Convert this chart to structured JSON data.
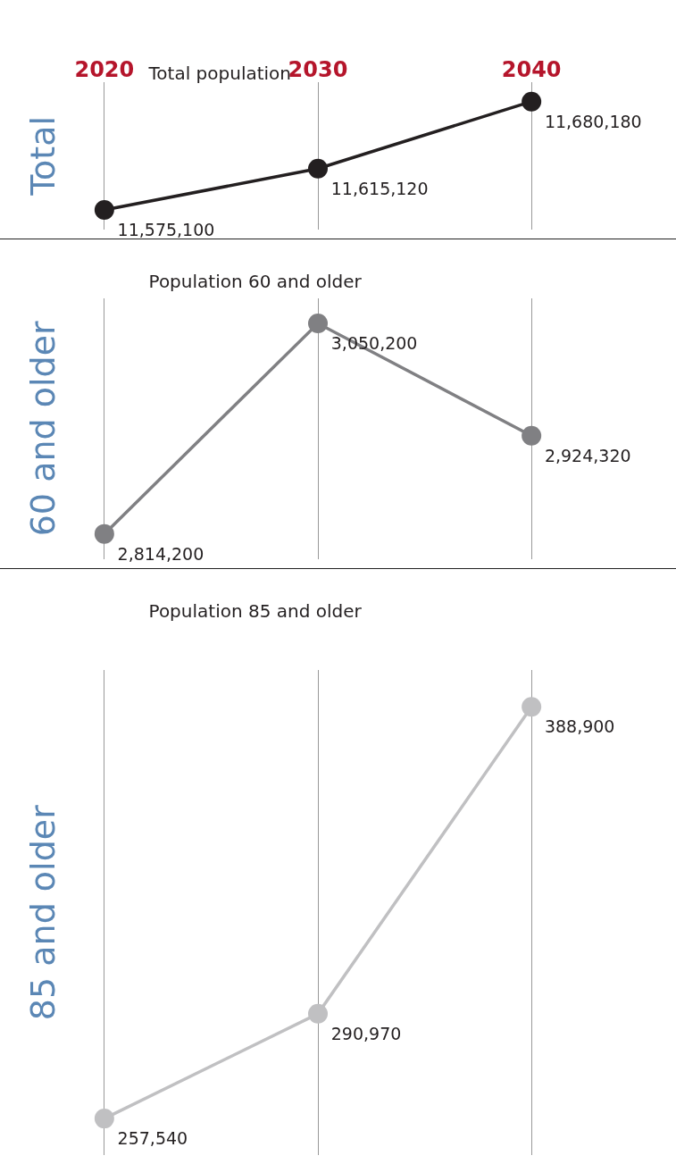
{
  "chart_data": [
    {
      "type": "line",
      "title": "Total population",
      "ylabel": "Total",
      "categories": [
        "2020",
        "2030",
        "2040"
      ],
      "series": [
        {
          "color": "#231f20",
          "values": [
            11575100,
            11615120,
            11680180
          ],
          "value_labels": [
            "11,575,100",
            "11,615,120",
            "11,680,180"
          ]
        }
      ],
      "marker": "circle",
      "grid": "x",
      "tick_labels": "x"
    },
    {
      "type": "line",
      "title": "Population 60 and older",
      "ylabel": "60 and older",
      "categories": [
        "2020",
        "2030",
        "2040"
      ],
      "series": [
        {
          "color": "#808083",
          "values": [
            2814200,
            3050200,
            2924320
          ],
          "value_labels": [
            "2,814,200",
            "3,050,200",
            "2,924,320"
          ]
        }
      ],
      "marker": "circle",
      "grid": "x",
      "tick_labels": false
    },
    {
      "type": "line",
      "title": "Population 85 and older",
      "ylabel": "85 and older",
      "categories": [
        "2020",
        "2030",
        "2040"
      ],
      "series": [
        {
          "color": "#c0c0c2",
          "values": [
            257540,
            290970,
            388900
          ],
          "value_labels": [
            "257,540",
            "290,970",
            "388,900"
          ]
        }
      ],
      "marker": "circle",
      "grid": "x",
      "tick_labels": false
    }
  ]
}
